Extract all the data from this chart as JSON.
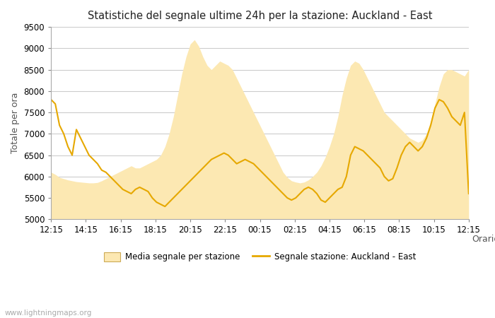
{
  "title": "Statistiche del segnale ultime 24h per la stazione: Auckland - East",
  "xlabel": "Orario",
  "ylabel": "Totale per ora",
  "watermark": "www.lightningmaps.org",
  "legend_area": "Media segnale per stazione",
  "legend_line": "Segnale stazione: Auckland - East",
  "ylim": [
    5000,
    9500
  ],
  "yticks": [
    5000,
    5500,
    6000,
    6500,
    7000,
    7500,
    8000,
    8500,
    9000,
    9500
  ],
  "xtick_labels": [
    "12:15",
    "14:15",
    "16:15",
    "18:15",
    "20:15",
    "22:15",
    "00:15",
    "02:15",
    "04:15",
    "06:15",
    "08:15",
    "10:15",
    "12:15"
  ],
  "area_color": "#fce8b2",
  "line_color": "#e6a800",
  "background_color": "#ffffff",
  "grid_color": "#cccccc",
  "area_y": [
    6100,
    6050,
    5980,
    5950,
    5920,
    5900,
    5880,
    5870,
    5860,
    5850,
    5850,
    5860,
    5900,
    5950,
    6000,
    6050,
    6100,
    6150,
    6200,
    6250,
    6200,
    6200,
    6250,
    6300,
    6350,
    6400,
    6500,
    6700,
    7000,
    7400,
    7900,
    8400,
    8800,
    9100,
    9200,
    9050,
    8800,
    8600,
    8500,
    8600,
    8700,
    8650,
    8600,
    8500,
    8300,
    8100,
    7900,
    7700,
    7500,
    7300,
    7100,
    6900,
    6700,
    6500,
    6300,
    6100,
    5980,
    5900,
    5870,
    5850,
    5870,
    5920,
    6000,
    6100,
    6250,
    6450,
    6700,
    7000,
    7400,
    7900,
    8300,
    8600,
    8700,
    8650,
    8500,
    8300,
    8100,
    7900,
    7700,
    7500,
    7400,
    7300,
    7200,
    7100,
    7000,
    6900,
    6850,
    6800,
    6850,
    7000,
    7300,
    7700,
    8100,
    8400,
    8500,
    8500,
    8450,
    8400,
    8350,
    8500
  ],
  "line_y": [
    7800,
    7700,
    7200,
    7000,
    6700,
    6500,
    7100,
    6900,
    6700,
    6500,
    6400,
    6300,
    6150,
    6100,
    6000,
    5900,
    5800,
    5700,
    5650,
    5600,
    5700,
    5750,
    5700,
    5650,
    5500,
    5400,
    5350,
    5300,
    5400,
    5500,
    5600,
    5700,
    5800,
    5900,
    6000,
    6100,
    6200,
    6300,
    6400,
    6450,
    6500,
    6550,
    6500,
    6400,
    6300,
    6350,
    6400,
    6350,
    6300,
    6200,
    6100,
    6000,
    5900,
    5800,
    5700,
    5600,
    5500,
    5450,
    5500,
    5600,
    5700,
    5750,
    5700,
    5600,
    5450,
    5400,
    5500,
    5600,
    5700,
    5750,
    6000,
    6500,
    6700,
    6650,
    6600,
    6500,
    6400,
    6300,
    6200,
    6000,
    5900,
    5950,
    6200,
    6500,
    6700,
    6800,
    6700,
    6600,
    6700,
    6900,
    7200,
    7600,
    7800,
    7750,
    7600,
    7400,
    7300,
    7200,
    7500,
    5600
  ]
}
